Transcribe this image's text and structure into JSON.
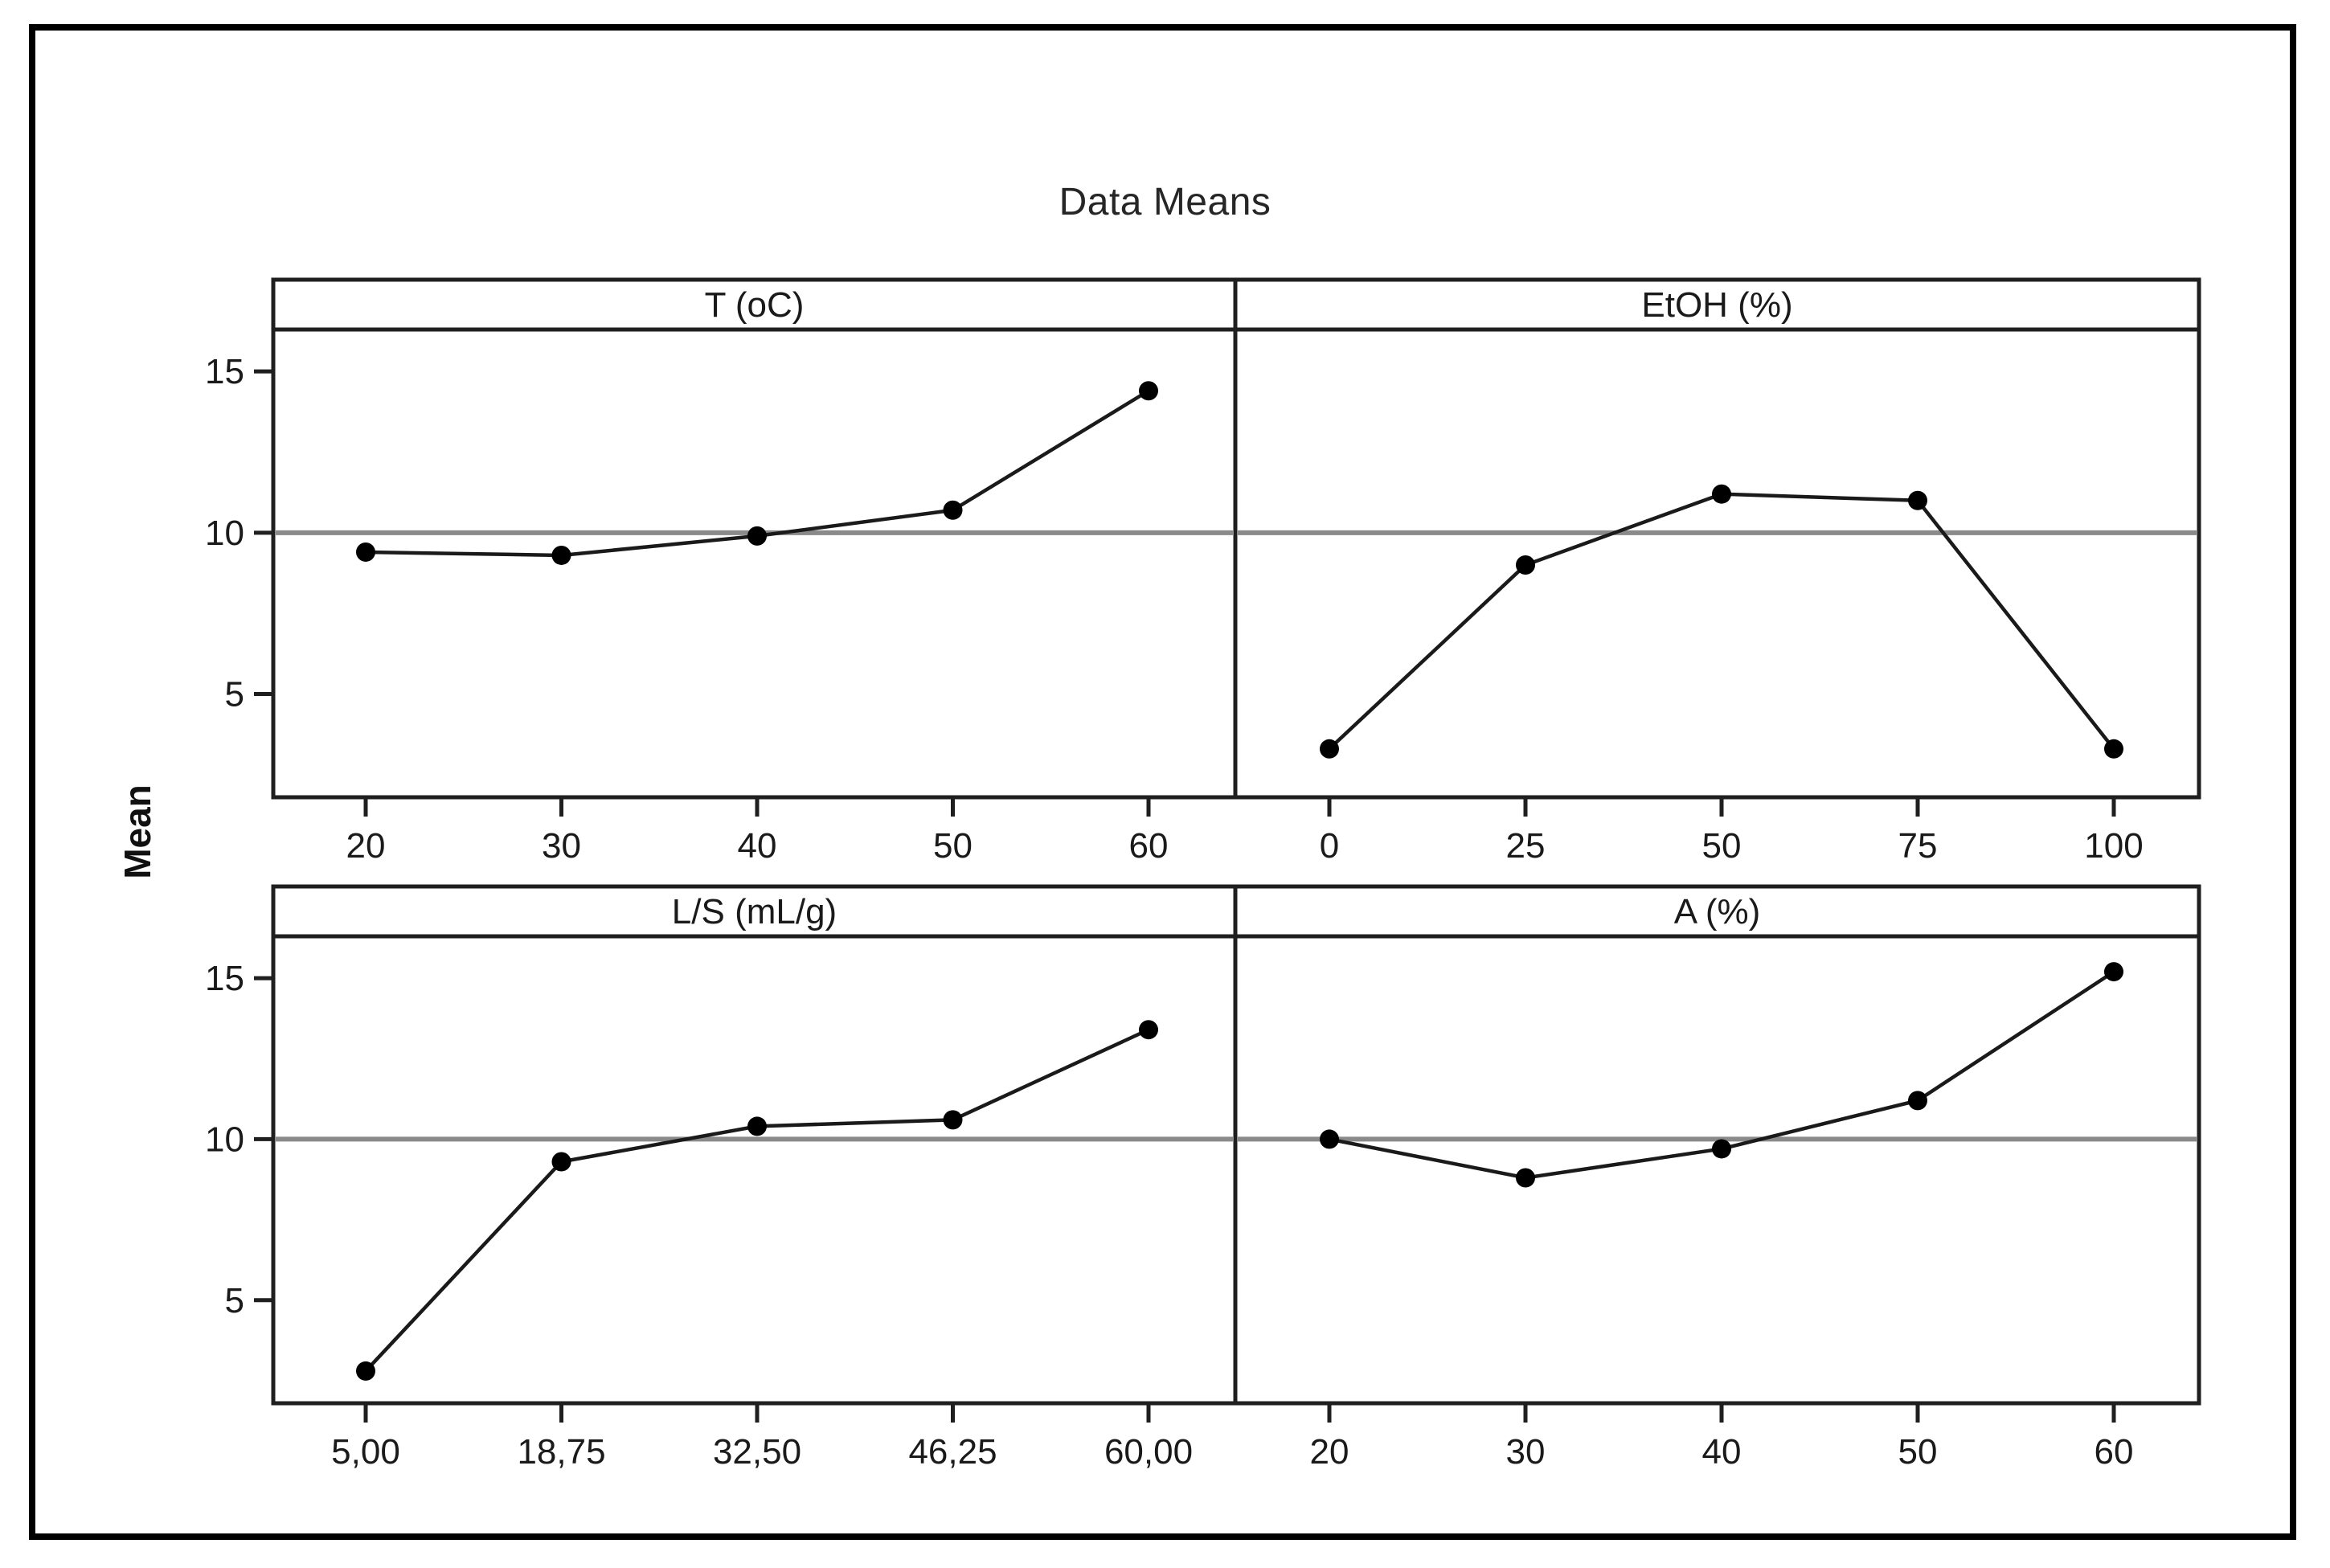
{
  "chart_data": {
    "type": "line",
    "title": "Data Means",
    "ylabel": "Mean",
    "layout_hint": "2x2 panel main-effects plot, one line series per panel, shared y-axis",
    "y_ticks": [
      "5",
      "10",
      "15"
    ],
    "ylim": [
      1.8,
      16.3
    ],
    "reference_line_y": 10,
    "grid": "single gray horizontal reference line at y=10 across all panels",
    "legend": "none",
    "panels": [
      {
        "factor": "T (oC)",
        "row": 0,
        "col": 0,
        "x": [
          20,
          30,
          40,
          50,
          60
        ],
        "x_labels": [
          "20",
          "30",
          "40",
          "50",
          "60"
        ],
        "means": [
          9.4,
          9.3,
          9.9,
          10.7,
          14.4
        ]
      },
      {
        "factor": "EtOH (%)",
        "row": 0,
        "col": 1,
        "x": [
          0,
          25,
          50,
          75,
          100
        ],
        "x_labels": [
          "0",
          "25",
          "50",
          "75",
          "100"
        ],
        "means": [
          3.3,
          9.0,
          11.2,
          11.0,
          3.3
        ]
      },
      {
        "factor": "L/S (mL/g)",
        "row": 1,
        "col": 0,
        "x": [
          5.0,
          18.75,
          32.5,
          46.25,
          60.0
        ],
        "x_labels": [
          "5,00",
          "18,75",
          "32,50",
          "46,25",
          "60,00"
        ],
        "means": [
          2.8,
          9.3,
          10.4,
          10.6,
          13.4
        ]
      },
      {
        "factor": "A (%)",
        "row": 1,
        "col": 1,
        "x": [
          20,
          30,
          40,
          50,
          60
        ],
        "x_labels": [
          "20",
          "30",
          "40",
          "50",
          "60"
        ],
        "means": [
          10.0,
          8.8,
          9.7,
          11.2,
          15.2
        ]
      }
    ],
    "colors": {
      "series_line": "#1a1a1a",
      "marker": "#000000",
      "reference_line": "#8a8a8a",
      "panel_border": "#1f1f1f",
      "tick_text": "#1a1a1a",
      "background": "#ffffff"
    }
  }
}
